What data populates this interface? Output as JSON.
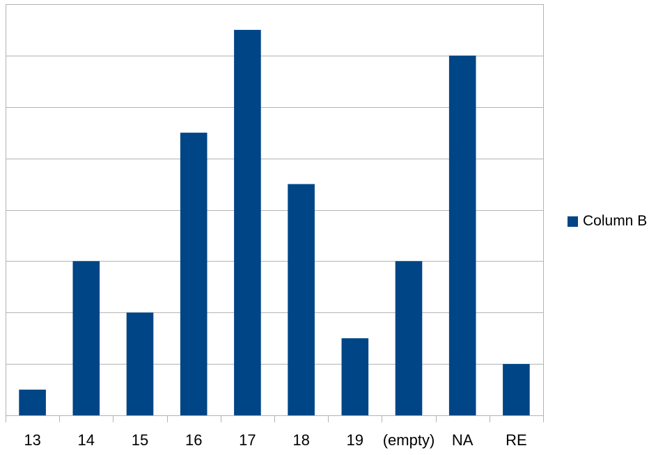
{
  "chart_data": {
    "type": "bar",
    "categories": [
      "13",
      "14",
      "15",
      "16",
      "17",
      "18",
      "19",
      "(empty)",
      "NA",
      "RE"
    ],
    "series": [
      {
        "name": "Column B",
        "values": [
          0.5,
          3,
          2,
          5.5,
          7.5,
          4.5,
          1.5,
          3,
          7,
          1
        ]
      }
    ],
    "title": "",
    "xlabel": "",
    "ylabel": "",
    "ylim": [
      0,
      8
    ],
    "y_gridline_step": 1,
    "y_tick_labels_shown": false,
    "grid": true,
    "legend_position": "right",
    "colors": {
      "bar": "#004586",
      "grid": "#b3b3b3",
      "axis": "#b3b3b3"
    }
  }
}
